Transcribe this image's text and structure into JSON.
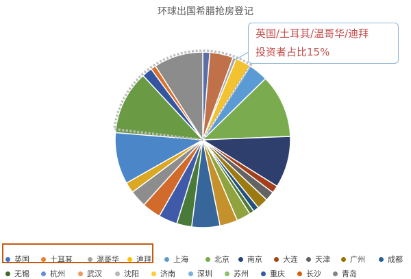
{
  "chart_data": {
    "type": "pie",
    "title": "环球出国希腊抢房登记",
    "annotation_lines": [
      "英国/土耳其/温哥华/迪拜",
      "投资者占比15%"
    ],
    "highlight_group": [
      "英国",
      "土耳其",
      "温哥华",
      "迪拜"
    ],
    "series": [
      {
        "name": "",
        "points": [
          {
            "label": "英国",
            "value": 1.5,
            "color": "#5a6fa8"
          },
          {
            "label": "土耳其",
            "value": 5.0,
            "color": "#c0714a"
          },
          {
            "label": "温哥华",
            "value": 0.7,
            "color": "#a5a5a5"
          },
          {
            "label": "迪拜",
            "value": 3.3,
            "color": "#f2c230"
          },
          {
            "label": "上海",
            "value": 4.2,
            "color": "#5b9bd5"
          },
          {
            "label": "北京",
            "value": 13.5,
            "color": "#7aac4f"
          },
          {
            "label": "南京",
            "value": 11.0,
            "color": "#2e3f6e"
          },
          {
            "label": "大连",
            "value": 1.6,
            "color": "#a33f1a"
          },
          {
            "label": "天津",
            "value": 2.0,
            "color": "#636363"
          },
          {
            "label": "广州",
            "value": 2.4,
            "color": "#9c7a12"
          },
          {
            "label": "成都",
            "value": 1.2,
            "color": "#214f7e"
          },
          {
            "label": "无锡",
            "value": 1.0,
            "color": "#4e7a36"
          },
          {
            "label": "杭州",
            "value": 3.0,
            "color": "#8fa33f"
          },
          {
            "label": "武汉",
            "value": 3.8,
            "color": "#c4912c"
          },
          {
            "label": "沈阳",
            "value": 6.0,
            "color": "#37669a"
          },
          {
            "label": "济南",
            "value": 3.2,
            "color": "#4a7a3a"
          },
          {
            "label": "深圳",
            "value": 4.0,
            "color": "#3e5aa8"
          },
          {
            "label": "苏州",
            "value": 4.0,
            "color": "#d16a2a"
          },
          {
            "label": "重庆",
            "value": 3.6,
            "color": "#8d8d8d"
          },
          {
            "label": "长沙",
            "value": 2.3,
            "color": "#dba824"
          },
          {
            "label": "青岛",
            "value": 11.0,
            "color": "#4a86c8"
          }
        ]
      },
      {
        "name": "",
        "points": [
          {
            "label": "",
            "value": 13.6,
            "color": "#6a9a43"
          },
          {
            "label": "",
            "value": 2.2,
            "color": "#3455a0"
          },
          {
            "label": "",
            "value": 1.1,
            "color": "#d9702a"
          },
          {
            "label": "",
            "value": 10.5,
            "color": "#8c8c8c"
          }
        ]
      }
    ],
    "legend": [
      [
        "英国",
        "土耳其",
        "温哥华",
        "迪拜",
        "上海",
        "北京",
        "南京",
        "大连",
        "天津",
        "广州",
        "成都"
      ],
      [
        "无锡",
        "杭州",
        "武汉",
        "沈阳",
        "济南",
        "深圳",
        "苏州",
        "重庆",
        "长沙",
        "青岛"
      ]
    ],
    "legend_colors": [
      [
        "#4472c4",
        "#ed7d31",
        "#a5a5a5",
        "#ffc000",
        "#5b9bd5",
        "#70ad47",
        "#264478",
        "#9e480e",
        "#636363",
        "#997300",
        "#255e91"
      ],
      [
        "#43682b",
        "#698ed0",
        "#f1975a",
        "#b7b7b7",
        "#ffcd33",
        "#7cafdd",
        "#8cc168",
        "#335aa1",
        "#d26012",
        "#848484"
      ]
    ],
    "legend_placement": "bottom"
  }
}
